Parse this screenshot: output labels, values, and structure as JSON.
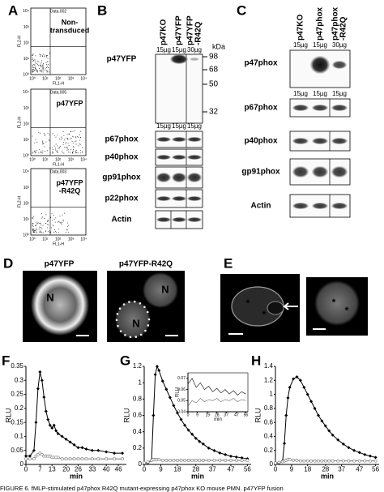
{
  "panel_a": {
    "label": "A",
    "x_axis": "FL1-H",
    "y_axis": "FL2-H",
    "ticks": [
      "10⁰",
      "10¹",
      "10²",
      "10³",
      "10⁴"
    ],
    "plots": [
      {
        "data_id": "Data.002",
        "title": [
          "Non-",
          "transduced"
        ]
      },
      {
        "data_id": "Data.005",
        "title": [
          "p47YFP"
        ]
      },
      {
        "data_id": "Data.003",
        "title": [
          "p47YFP",
          "-R42Q"
        ]
      }
    ]
  },
  "panel_b": {
    "label": "B",
    "lanes": [
      [
        "p47KO"
      ],
      [
        "p47YFP"
      ],
      [
        "p47YFP",
        "-R42Q"
      ]
    ],
    "loads_top": [
      "15µg",
      "15µg",
      "30µg"
    ],
    "kda_label": "kDa",
    "kda_markers": [
      "98",
      "68",
      "50",
      "32"
    ],
    "top_blot": "p47YFP",
    "loads": [
      "15µg",
      "15µg",
      "15µg"
    ],
    "blots": [
      "p67phox",
      "p40phox",
      "gp91phox",
      "p22phox",
      "Actin"
    ]
  },
  "panel_c": {
    "label": "C",
    "lanes": [
      [
        "p47KO"
      ],
      [
        "p47phox"
      ],
      [
        "p47phox",
        "-R42Q"
      ]
    ],
    "loads_top": [
      "15µg",
      "15µg",
      "30µg"
    ],
    "top_blot": "p47phox",
    "loads": [
      "15µg",
      "15µg",
      "15µg"
    ],
    "blots": [
      "p67phox",
      "p40phox",
      "gp91phox",
      "Actin"
    ]
  },
  "panel_d": {
    "label": "D",
    "images": [
      {
        "title": "p47YFP",
        "nuclei": [
          "N"
        ]
      },
      {
        "title": "p47YFP-R42Q",
        "nuclei": [
          "N",
          "N"
        ]
      }
    ]
  },
  "panel_e": {
    "label": "E",
    "marks": [
      "*",
      "*",
      "*",
      "*"
    ]
  },
  "caption": "FIGURE 6. fMLP-stimulated p47phox R42Q mutant-expressing p47phox KO mouse PMN. p47YFP fusion",
  "chart_data": [
    {
      "type": "line",
      "panel": "F",
      "ylabel": "RLU",
      "xlabel": "min",
      "x": [
        0,
        2,
        4,
        5,
        6,
        7,
        8,
        9,
        10,
        11,
        12,
        13,
        14,
        15,
        16,
        18,
        20,
        22,
        24,
        26,
        28,
        30,
        33,
        36,
        40,
        44,
        48
      ],
      "xlim": [
        0,
        50
      ],
      "xticks": [
        0,
        7,
        13,
        20,
        26,
        33,
        40,
        46
      ],
      "ylim": [
        0,
        0.35
      ],
      "yticks": [
        0,
        0.05,
        0.1,
        0.15,
        0.2,
        0.25,
        0.3,
        0.35
      ],
      "series": [
        {
          "color": "#000000",
          "marker": "diamond",
          "values": [
            0.03,
            0.03,
            0.05,
            0.15,
            0.27,
            0.33,
            0.3,
            0.24,
            0.19,
            0.16,
            0.14,
            0.13,
            0.14,
            0.12,
            0.11,
            0.1,
            0.09,
            0.08,
            0.07,
            0.06,
            0.06,
            0.055,
            0.05,
            0.05,
            0.045,
            0.04,
            0.04
          ]
        },
        {
          "color": "#777777",
          "marker": "circle",
          "values": [
            0.02,
            0.02,
            0.02,
            0.03,
            0.035,
            0.04,
            0.035,
            0.03,
            0.03,
            0.03,
            0.03,
            0.025,
            0.025,
            0.025,
            0.025,
            0.02,
            0.02,
            0.02,
            0.02,
            0.02,
            0.02,
            0.02,
            0.02,
            0.02,
            0.02,
            0.02,
            0.02
          ]
        }
      ]
    },
    {
      "type": "line",
      "panel": "G",
      "ylabel": "RLU",
      "xlabel": "min",
      "x": [
        0,
        2,
        4,
        5,
        6,
        7,
        8,
        10,
        12,
        14,
        16,
        18,
        20,
        22,
        24,
        26,
        28,
        30,
        32,
        35,
        38,
        41,
        44,
        47,
        50,
        53,
        56
      ],
      "xlim": [
        0,
        58
      ],
      "xticks": [
        0,
        9,
        18,
        28,
        37,
        47,
        56
      ],
      "ylim": [
        0,
        1.2
      ],
      "yticks": [
        0,
        0.2,
        0.4,
        0.6,
        0.8,
        1,
        1.2
      ],
      "series": [
        {
          "color": "#000000",
          "marker": "diamond",
          "values": [
            0.02,
            0.02,
            0.05,
            0.6,
            1.1,
            1.2,
            1.15,
            1.02,
            0.92,
            0.82,
            0.72,
            0.63,
            0.55,
            0.48,
            0.42,
            0.37,
            0.32,
            0.28,
            0.25,
            0.2,
            0.17,
            0.14,
            0.12,
            0.1,
            0.09,
            0.08,
            0.07
          ]
        },
        {
          "color": "#777777",
          "marker": "circle",
          "values": [
            0.02,
            0.03,
            0.05,
            0.06,
            0.06,
            0.06,
            0.06,
            0.05,
            0.05,
            0.05,
            0.05,
            0.05,
            0.05,
            0.05,
            0.05,
            0.05,
            0.05,
            0.05,
            0.05,
            0.05,
            0.05,
            0.05,
            0.05,
            0.05,
            0.05,
            0.05,
            0.05
          ]
        }
      ]
    },
    {
      "type": "line",
      "inset": true,
      "ylabel": "RLU",
      "xlabel": "min",
      "x": [
        0,
        4,
        8,
        12,
        16,
        20,
        24,
        28,
        32,
        36,
        40,
        44,
        48,
        52,
        56
      ],
      "xlim": [
        0,
        58
      ],
      "xticks": [
        0,
        9,
        19,
        28,
        37,
        47,
        56
      ],
      "ylim": [
        0.04,
        0.075
      ],
      "yticks": [
        0.04,
        0.05,
        0.06,
        0.07
      ],
      "series": [
        {
          "color": "#000000",
          "marker": "none",
          "values": [
            0.065,
            0.07,
            0.062,
            0.066,
            0.06,
            0.063,
            0.058,
            0.061,
            0.057,
            0.06,
            0.056,
            0.059,
            0.055,
            0.058,
            0.056
          ]
        },
        {
          "color": "#666666",
          "marker": "none",
          "values": [
            0.045,
            0.05,
            0.048,
            0.052,
            0.049,
            0.051,
            0.05,
            0.052,
            0.049,
            0.051,
            0.05,
            0.052,
            0.049,
            0.051,
            0.05
          ]
        }
      ]
    },
    {
      "type": "line",
      "panel": "H",
      "ylabel": "RLU",
      "xlabel": "min",
      "x": [
        0,
        2,
        4,
        5,
        6,
        7,
        8,
        10,
        12,
        14,
        16,
        18,
        20,
        22,
        24,
        26,
        28,
        30,
        32,
        35,
        38,
        41,
        44,
        47,
        50,
        53,
        56
      ],
      "xlim": [
        0,
        58
      ],
      "xticks": [
        0,
        9,
        18,
        28,
        37,
        47,
        56
      ],
      "ylim": [
        0,
        1.4
      ],
      "yticks": [
        0,
        0.2,
        0.4,
        0.6,
        0.8,
        1,
        1.2,
        1.4
      ],
      "series": [
        {
          "color": "#000000",
          "marker": "diamond",
          "values": [
            0.02,
            0.02,
            0.05,
            0.3,
            0.7,
            0.95,
            1.1,
            1.22,
            1.25,
            1.2,
            1.1,
            1.0,
            0.9,
            0.8,
            0.7,
            0.62,
            0.55,
            0.48,
            0.42,
            0.35,
            0.29,
            0.24,
            0.2,
            0.17,
            0.14,
            0.12,
            0.1
          ]
        },
        {
          "color": "#777777",
          "marker": "circle",
          "values": [
            0.02,
            0.03,
            0.04,
            0.05,
            0.06,
            0.07,
            0.07,
            0.06,
            0.06,
            0.05,
            0.05,
            0.05,
            0.05,
            0.05,
            0.05,
            0.05,
            0.05,
            0.05,
            0.05,
            0.05,
            0.05,
            0.05,
            0.05,
            0.05,
            0.05,
            0.05,
            0.05
          ]
        }
      ]
    }
  ]
}
